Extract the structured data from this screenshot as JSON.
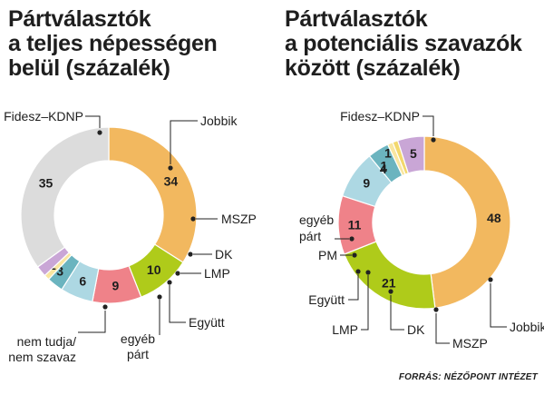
{
  "colors": {
    "Fidesz-KDNP": "#F2B85F",
    "Jobbik": "#AFCB1A",
    "MSZP": "#EF8289",
    "DK": "#ADD8E3",
    "LMP": "#6BB4BF",
    "Együtt": "#F9E6A0",
    "egyéb párt": "#C9A6D6",
    "PM": "#F3D86D",
    "nem tudja / nem szavaz": "#DCDCDC"
  },
  "chart_data": [
    {
      "type": "pie",
      "variant": "donut",
      "title": "Pártválasztók a teljes népességen belül (százalék)",
      "title_lines": [
        "Pártválasztók",
        "a teljes népességen",
        "belül (százalék)"
      ],
      "categories": [
        "Fidesz-KDNP",
        "Jobbik",
        "MSZP",
        "DK",
        "LMP",
        "Együtt",
        "egyéb párt",
        "nem tudja / nem szavaz"
      ],
      "values": [
        34,
        10,
        9,
        6,
        3,
        1,
        2,
        35
      ],
      "labels": {
        "fidesz": "Fidesz–KDNP",
        "jobbik": "Jobbik",
        "mszp": "MSZP",
        "dk": "DK",
        "lmp": "LMP",
        "egyutt": "Együtt",
        "egyeb": [
          "egyéb",
          "párt"
        ],
        "nemtudja": [
          "nem tudja/",
          "nem szavaz"
        ]
      }
    },
    {
      "type": "pie",
      "variant": "donut",
      "title": "Pártválasztók a potenciális szavazók között (százalék)",
      "title_lines": [
        "Pártválasztók",
        "a potenciális szavazók",
        "között (százalék)"
      ],
      "categories": [
        "Fidesz-KDNP",
        "Jobbik",
        "MSZP",
        "DK",
        "LMP",
        "Együtt",
        "PM",
        "egyéb párt"
      ],
      "values": [
        48,
        21,
        11,
        9,
        4,
        1,
        1,
        5
      ],
      "labels": {
        "fidesz": "Fidesz–KDNP",
        "jobbik": "Jobbik",
        "mszp": "MSZP",
        "dk": "DK",
        "lmp": "LMP",
        "egyutt": "Együtt",
        "pm": "PM",
        "egyeb": [
          "egyéb",
          "párt"
        ]
      }
    }
  ],
  "source": "FORRÁS: NÉZŐPONT INTÉZET"
}
